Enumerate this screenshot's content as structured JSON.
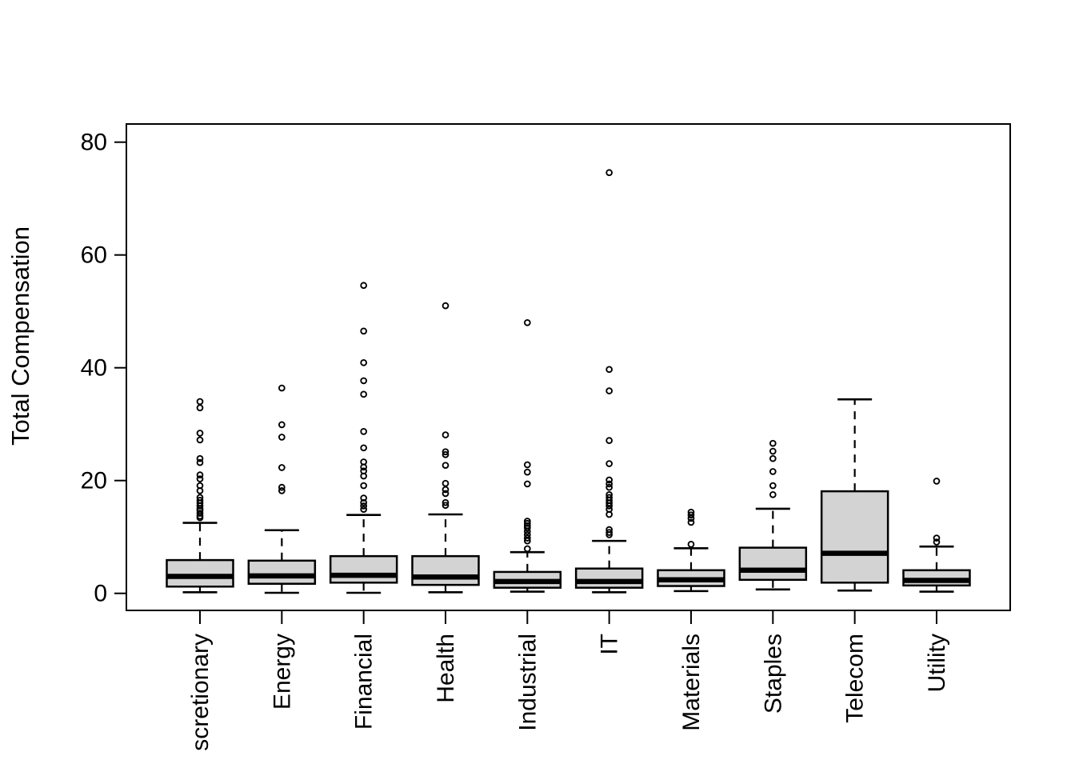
{
  "figure": {
    "background": "#ffffff",
    "frame_color": "#000000",
    "box_fill": "#d3d3d3"
  },
  "chart_data": {
    "type": "boxplot",
    "title": "",
    "xlabel": "",
    "ylabel": "Total Compensation",
    "ylim": [
      0,
      80
    ],
    "yticks": [
      0,
      20,
      40,
      60,
      80
    ],
    "ytick_labels": [
      "0",
      "20",
      "40",
      "60",
      "80"
    ],
    "grid": "off",
    "legend": "none",
    "categories": [
      "scretionary",
      "Energy",
      "Financial",
      "Health",
      "Industrial",
      "IT",
      "Materials",
      "Staples",
      "Telecom",
      "Utility"
    ],
    "series": [
      {
        "name": "scretionary",
        "whisker_low": 0.2,
        "q1": 1.2,
        "median": 3.0,
        "q3": 5.9,
        "whisker_high": 12.5,
        "outliers": [
          13.4,
          13.7,
          14.2,
          14.7,
          15.0,
          15.5,
          16.0,
          16.5,
          17.0,
          18.2,
          19.1,
          20.3,
          21.0,
          23.2,
          23.9,
          27.2,
          28.4,
          32.9,
          34.0
        ]
      },
      {
        "name": "Energy",
        "whisker_low": 0.1,
        "q1": 1.7,
        "median": 3.1,
        "q3": 5.8,
        "whisker_high": 11.2,
        "outliers": [
          18.2,
          18.8,
          22.3,
          27.7,
          29.9,
          36.4
        ]
      },
      {
        "name": "Financial",
        "whisker_low": 0.1,
        "q1": 1.9,
        "median": 3.2,
        "q3": 6.6,
        "whisker_high": 13.9,
        "outliers": [
          14.9,
          15.5,
          16.1,
          16.9,
          19.1,
          20.8,
          21.7,
          22.4,
          23.3,
          25.8,
          28.7,
          35.3,
          37.7,
          40.9,
          46.5,
          54.6
        ]
      },
      {
        "name": "Health",
        "whisker_low": 0.2,
        "q1": 1.5,
        "median": 2.9,
        "q3": 6.6,
        "whisker_high": 14.0,
        "outliers": [
          15.6,
          16.1,
          17.7,
          18.4,
          19.5,
          22.7,
          24.6,
          25.1,
          28.1,
          51.0
        ]
      },
      {
        "name": "Industrial",
        "whisker_low": 0.3,
        "q1": 1.0,
        "median": 2.1,
        "q3": 3.8,
        "whisker_high": 7.3,
        "outliers": [
          7.9,
          9.3,
          9.8,
          10.4,
          11.0,
          11.6,
          12.0,
          12.4,
          12.8,
          19.4,
          21.5,
          22.8,
          48.0
        ]
      },
      {
        "name": "IT",
        "whisker_low": 0.2,
        "q1": 1.0,
        "median": 2.1,
        "q3": 4.4,
        "whisker_high": 9.3,
        "outliers": [
          10.4,
          10.8,
          11.3,
          14.0,
          14.9,
          15.5,
          16.0,
          16.5,
          17.0,
          17.5,
          18.8,
          19.4,
          20.1,
          23.0,
          27.1,
          35.9,
          39.7,
          74.6
        ]
      },
      {
        "name": "Materials",
        "whisker_low": 0.4,
        "q1": 1.3,
        "median": 2.4,
        "q3": 4.1,
        "whisker_high": 8.0,
        "outliers": [
          8.7,
          12.6,
          13.3,
          13.9,
          14.4
        ]
      },
      {
        "name": "Staples",
        "whisker_low": 0.7,
        "q1": 2.4,
        "median": 4.1,
        "q3": 8.1,
        "whisker_high": 15.0,
        "outliers": [
          17.5,
          19.1,
          21.6,
          23.9,
          25.2,
          26.6
        ]
      },
      {
        "name": "Telecom",
        "whisker_low": 0.5,
        "q1": 1.9,
        "median": 7.1,
        "q3": 18.1,
        "whisker_high": 34.4,
        "outliers": []
      },
      {
        "name": "Utility",
        "whisker_low": 0.3,
        "q1": 1.4,
        "median": 2.3,
        "q3": 4.1,
        "whisker_high": 8.3,
        "outliers": [
          9.1,
          9.8,
          19.9
        ]
      }
    ]
  }
}
